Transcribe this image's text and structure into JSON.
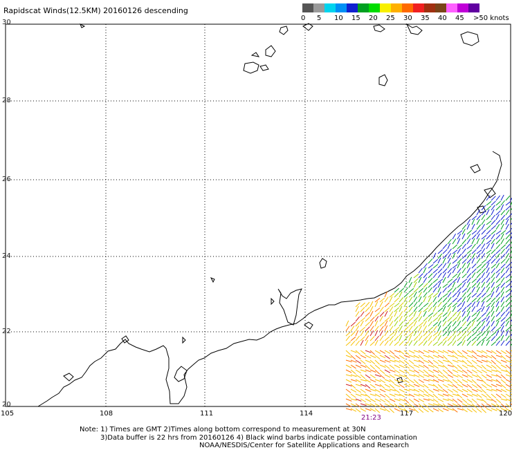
{
  "title": "Rapidscat Winds(12.5KM) 20160126 descending",
  "legend": {
    "colors": [
      "#555555",
      "#9a9a9a",
      "#00d4ee",
      "#0090f5",
      "#1020d0",
      "#00a020",
      "#00dd00",
      "#f8f000",
      "#ffb000",
      "#ff6a00",
      "#f02020",
      "#a03010",
      "#7a4418",
      "#ff60ff",
      "#c000d8",
      "#6000a0"
    ],
    "labels": [
      "0",
      "5",
      "10",
      "15",
      "20",
      "25",
      "30",
      "35",
      "40",
      "45",
      ">50 knots"
    ]
  },
  "axes": {
    "lat_labels": [
      "30",
      "28",
      "26",
      "24",
      "22",
      "20"
    ],
    "lon_labels": [
      "105",
      "108",
      "111",
      "114",
      "117",
      "120"
    ]
  },
  "pass_time": "21:23",
  "notes": {
    "line1": "Note: 1) Times are GMT 2)Times along bottom correspond to measurement at 30N",
    "line2": "3)Data buffer is 22 hrs from 20160126 4) Black wind barbs indicate possible contamination",
    "line3": "NOAA/NESDIS/Center for Satellite Applications and Research"
  }
}
